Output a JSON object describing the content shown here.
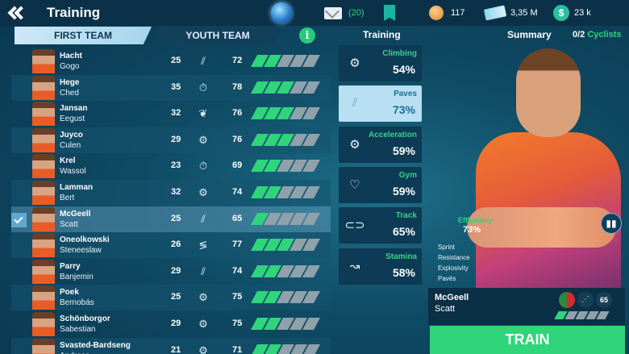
{
  "header": {
    "title": "Training"
  },
  "resources": {
    "messages": "(20)",
    "coins": "117",
    "money": "3,35 M",
    "dollars": "23 k"
  },
  "tabs": {
    "first": "FIRST TEAM",
    "youth": "YOUTH TEAM"
  },
  "riders": [
    {
      "last": "Hacht",
      "first": "Gogo",
      "age": "25",
      "icon": "paves-icon",
      "ovr": "72",
      "level": 2
    },
    {
      "last": "Hege",
      "first": "Ched",
      "age": "35",
      "icon": "stopwatch-icon",
      "ovr": "78",
      "level": 3
    },
    {
      "last": "Jansan",
      "first": "Eegust",
      "age": "32",
      "icon": "laurel-icon",
      "ovr": "76",
      "level": 3
    },
    {
      "last": "Juyco",
      "first": "Culen",
      "age": "29",
      "icon": "bike-icon",
      "ovr": "76",
      "level": 3
    },
    {
      "last": "Krel",
      "first": "Wassol",
      "age": "23",
      "icon": "stopwatch-icon",
      "ovr": "69",
      "level": 2
    },
    {
      "last": "Lamman",
      "first": "Bert",
      "age": "32",
      "icon": "climbing-bike-icon",
      "ovr": "74",
      "level": 2
    },
    {
      "last": "McGeell",
      "first": "Scatt",
      "age": "25",
      "icon": "paves-icon",
      "ovr": "65",
      "level": 1,
      "selected": true
    },
    {
      "last": "Oneolkowski",
      "first": "Steneeslaw",
      "age": "26",
      "icon": "sprint-icon",
      "ovr": "77",
      "level": 3
    },
    {
      "last": "Parry",
      "first": "Banjemin",
      "age": "29",
      "icon": "paves-icon",
      "ovr": "74",
      "level": 2
    },
    {
      "last": "Poek",
      "first": "Bernobás",
      "age": "25",
      "icon": "bike-icon",
      "ovr": "75",
      "level": 2
    },
    {
      "last": "Schönborgor",
      "first": "Sabestian",
      "age": "29",
      "icon": "climbing-bike-icon",
      "ovr": "75",
      "level": 2
    },
    {
      "last": "Svasted-Bardseng",
      "first": "Andreas",
      "age": "21",
      "icon": "bike-icon",
      "ovr": "71",
      "level": 2
    }
  ],
  "training": {
    "heading": "Training",
    "options": [
      {
        "label": "Climbing",
        "pct": "54%",
        "icon": "climbing-bike-icon"
      },
      {
        "label": "Paves",
        "pct": "73%",
        "icon": "paves-icon",
        "selected": true
      },
      {
        "label": "Acceleration",
        "pct": "59%",
        "icon": "bike-icon"
      },
      {
        "label": "Gym",
        "pct": "59%",
        "icon": "heart-rate-icon"
      },
      {
        "label": "Track",
        "pct": "65%",
        "icon": "track-icon"
      },
      {
        "label": "Stamina",
        "pct": "58%",
        "icon": "stamina-icon"
      }
    ]
  },
  "summary": {
    "heading": "Summary",
    "count": "0/2",
    "count_label": "Cyclists",
    "efficiency_label": "Efficiency",
    "efficiency_value": "73%",
    "stats": [
      "Sprint",
      "Resistance",
      "Explosivity",
      "Pavés"
    ],
    "selected_last": "McGeell",
    "selected_first": "Scatt",
    "selected_ovr": "65",
    "selected_level": 1
  },
  "train_button": "TRAIN",
  "colors": {
    "accent": "#2fd47b",
    "panel": "#0b3149",
    "tab_active": "#cde8f6"
  }
}
